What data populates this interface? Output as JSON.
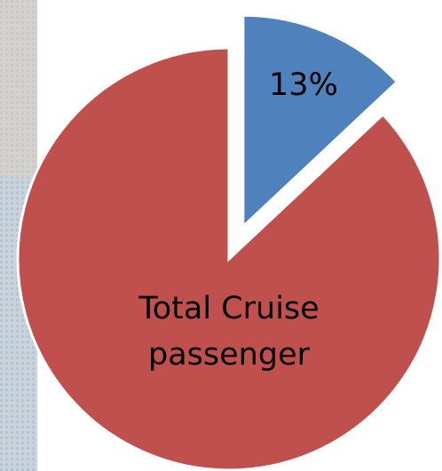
{
  "chart_data": {
    "type": "pie",
    "categories": [
      null,
      "Total Cruise passenger"
    ],
    "values": [
      13,
      87
    ],
    "value_labels": [
      "13%",
      null
    ],
    "colors": [
      "#4f81bd",
      "#c0504d"
    ]
  }
}
